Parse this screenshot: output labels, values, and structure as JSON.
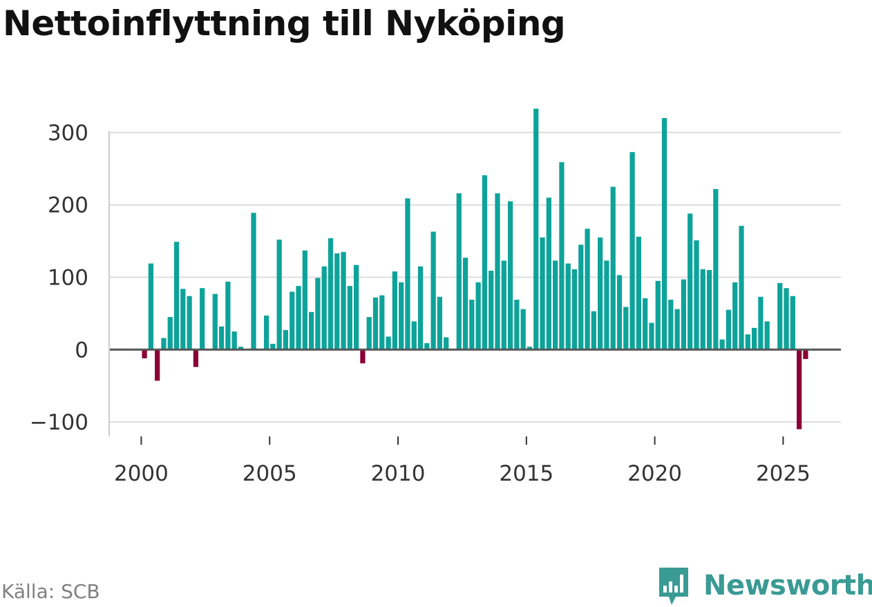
{
  "title": "Nettoinflyttning till Nyköping",
  "source": {
    "label": "Källa:",
    "value": "SCB"
  },
  "brand": {
    "name": "Newsworthy",
    "icon": "newsworthy-logo-icon"
  },
  "colors": {
    "positive": "#0da39a",
    "negative": "#8b0035",
    "grid": "#dcdcdc",
    "zero_line": "#555555",
    "brand": "#3a9a94"
  },
  "chart_data": {
    "type": "bar",
    "title": "Nettoinflyttning till Nyköping",
    "xlabel": "",
    "ylabel": "",
    "x_ticks": [
      "2000",
      "2005",
      "2010",
      "2015",
      "2020",
      "2025"
    ],
    "y_ticks": [
      "300",
      "200",
      "100",
      "0",
      "−100"
    ],
    "y_tick_values": [
      300,
      200,
      100,
      0,
      -100
    ],
    "ylim": [
      -120,
      340
    ],
    "xlim": [
      1998.75,
      2027.25
    ],
    "grid": true,
    "frequency": "quarterly",
    "x": [
      2000.125,
      2000.375,
      2000.625,
      2000.875,
      2001.125,
      2001.375,
      2001.625,
      2001.875,
      2002.125,
      2002.375,
      2002.625,
      2002.875,
      2003.125,
      2003.375,
      2003.625,
      2003.875,
      2004.125,
      2004.375,
      2004.625,
      2004.875,
      2005.125,
      2005.375,
      2005.625,
      2005.875,
      2006.125,
      2006.375,
      2006.625,
      2006.875,
      2007.125,
      2007.375,
      2007.625,
      2007.875,
      2008.125,
      2008.375,
      2008.625,
      2008.875,
      2009.125,
      2009.375,
      2009.625,
      2009.875,
      2010.125,
      2010.375,
      2010.625,
      2010.875,
      2011.125,
      2011.375,
      2011.625,
      2011.875,
      2012.125,
      2012.375,
      2012.625,
      2012.875,
      2013.125,
      2013.375,
      2013.625,
      2013.875,
      2014.125,
      2014.375,
      2014.625,
      2014.875,
      2015.125,
      2015.375,
      2015.625,
      2015.875,
      2016.125,
      2016.375,
      2016.625,
      2016.875,
      2017.125,
      2017.375,
      2017.625,
      2017.875,
      2018.125,
      2018.375,
      2018.625,
      2018.875,
      2019.125,
      2019.375,
      2019.625,
      2019.875,
      2020.125,
      2020.375,
      2020.625,
      2020.875,
      2021.125,
      2021.375,
      2021.625,
      2021.875,
      2022.125,
      2022.375,
      2022.625,
      2022.875,
      2023.125,
      2023.375,
      2023.625,
      2023.875,
      2024.125,
      2024.375,
      2024.625,
      2024.875,
      2025.125,
      2025.375,
      2025.625,
      2025.875
    ],
    "values": [
      -12,
      119,
      -43,
      16,
      45,
      149,
      84,
      74,
      -24,
      85,
      0,
      77,
      32,
      94,
      25,
      4,
      0,
      189,
      0,
      47,
      8,
      152,
      27,
      80,
      88,
      137,
      52,
      99,
      115,
      154,
      133,
      135,
      88,
      117,
      -19,
      45,
      72,
      75,
      18,
      108,
      93,
      209,
      39,
      115,
      9,
      163,
      73,
      17,
      0,
      216,
      127,
      69,
      93,
      241,
      109,
      216,
      123,
      205,
      69,
      56,
      4,
      333,
      155,
      210,
      123,
      259,
      119,
      111,
      145,
      167,
      53,
      155,
      123,
      225,
      103,
      59,
      273,
      156,
      71,
      37,
      95,
      320,
      69,
      56,
      97,
      188,
      151,
      111,
      110,
      222,
      14,
      55,
      93,
      171,
      21,
      30,
      73,
      39,
      0,
      92,
      85,
      74,
      -110,
      -13
    ]
  }
}
